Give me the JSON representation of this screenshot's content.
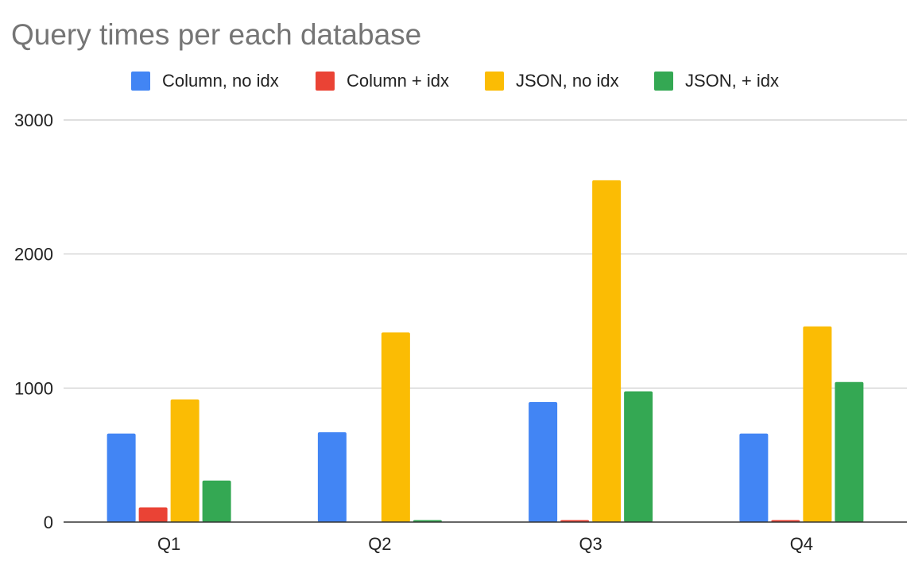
{
  "chart_data": {
    "type": "bar",
    "title": "Query times per each database",
    "categories": [
      "Q1",
      "Q2",
      "Q3",
      "Q4"
    ],
    "series": [
      {
        "name": "Column, no idx",
        "color": "#4285f4",
        "values": [
          660,
          670,
          895,
          660
        ]
      },
      {
        "name": "Column + idx",
        "color": "#ea4335",
        "values": [
          110,
          0,
          15,
          15
        ]
      },
      {
        "name": "JSON, no idx",
        "color": "#fbbc04",
        "values": [
          915,
          1415,
          2550,
          1460
        ]
      },
      {
        "name": "JSON, + idx",
        "color": "#34a853",
        "values": [
          310,
          15,
          975,
          1045
        ]
      }
    ],
    "yticks": [
      "0",
      "1000",
      "2000",
      "3000"
    ],
    "ylim": [
      0,
      3000
    ],
    "grid": true,
    "legend_position": "top-center"
  }
}
